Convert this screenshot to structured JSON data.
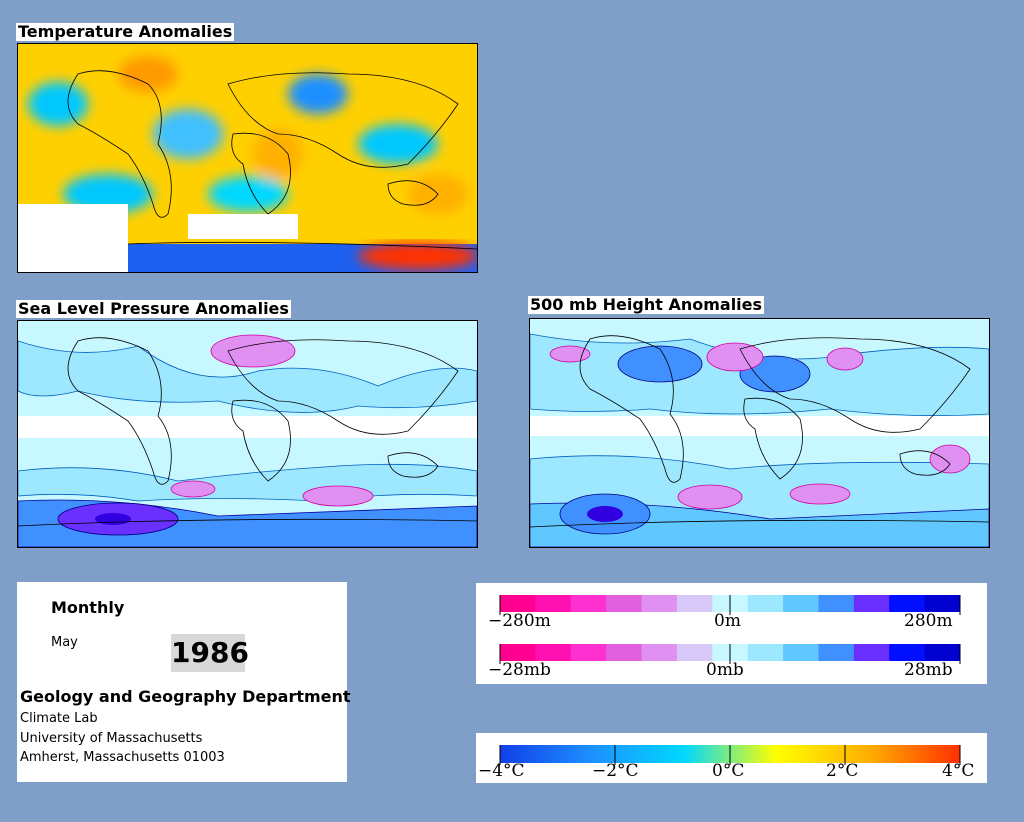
{
  "maps": {
    "temp_title": "Temperature Anomalies",
    "slp_title": "Sea Level Pressure Anomalies",
    "height_title": "500 mb Height Anomalies"
  },
  "info": {
    "period": "Monthly",
    "month": "May",
    "year": "1986",
    "department": "Geology and Geography Department",
    "lab": "Climate Lab",
    "university": "University of Massachusetts",
    "address": "Amherst, Massachusetts 01003"
  },
  "legend_height": {
    "labels": [
      "−280m",
      "0m",
      "280m"
    ],
    "colors": [
      "#ff0090",
      "#ff10b0",
      "#ff30d0",
      "#e060e0",
      "#e090f0",
      "#d8c8f8",
      "#c8f8ff",
      "#9ee8ff",
      "#60c8ff",
      "#4090ff",
      "#6a30ff",
      "#0010ff",
      "#0000d0"
    ]
  },
  "legend_pressure": {
    "labels": [
      "−28mb",
      "0mb",
      "28mb"
    ],
    "colors": [
      "#ff0090",
      "#ff10b0",
      "#ff30d0",
      "#e060e0",
      "#e090f0",
      "#d8c8f8",
      "#c8f8ff",
      "#9ee8ff",
      "#60c8ff",
      "#4090ff",
      "#6a30ff",
      "#0010ff",
      "#0000d0"
    ]
  },
  "legend_temp": {
    "labels": [
      "−4°C",
      "−2°C",
      "0°C",
      "2°C",
      "4°C"
    ],
    "colors": [
      "#1040e8",
      "#1e90ff",
      "#00d8ff",
      "#ffff00",
      "#ffb000",
      "#ff3000"
    ]
  }
}
